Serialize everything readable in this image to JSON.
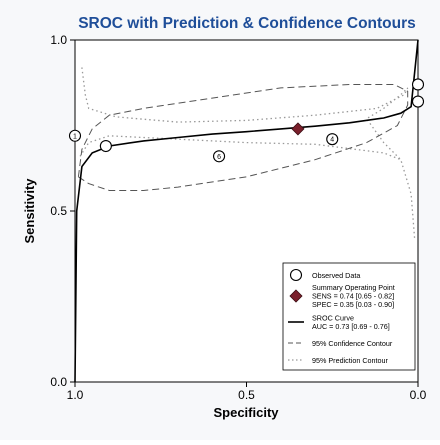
{
  "chart_data": {
    "type": "scatter",
    "title": "SROC with Prediction & Confidence Contours",
    "xlabel": "Specificity",
    "ylabel": "Sensitivity",
    "x_reversed": true,
    "xlim": [
      1.0,
      0.0
    ],
    "ylim": [
      0.0,
      1.0
    ],
    "x_ticks": [
      {
        "value": 1.0,
        "label": "1.0"
      },
      {
        "value": 0.5,
        "label": "0.5"
      },
      {
        "value": 0.0,
        "label": "0.0"
      }
    ],
    "y_ticks": [
      {
        "value": 0.0,
        "label": "0.0"
      },
      {
        "value": 0.5,
        "label": "0.5"
      },
      {
        "value": 1.0,
        "label": "1.0"
      }
    ],
    "grid": false,
    "legend_position": "bottom-right",
    "colors": {
      "title": "#1f4e99",
      "summary_point": "#7a1f2b",
      "curve": "#000000",
      "confidence": "#555555",
      "prediction": "#999999"
    },
    "observed_points": [
      {
        "spec": 1.0,
        "sens": 0.72,
        "label": "1"
      },
      {
        "spec": 0.91,
        "sens": 0.69,
        "label": ""
      },
      {
        "spec": 0.58,
        "sens": 0.66,
        "label": "6"
      },
      {
        "spec": 0.25,
        "sens": 0.71,
        "label": "4"
      },
      {
        "spec": 0.0,
        "sens": 0.87,
        "label": ""
      },
      {
        "spec": 0.0,
        "sens": 0.82,
        "label": ""
      }
    ],
    "summary_point": {
      "spec": 0.35,
      "sens": 0.74
    },
    "sroc_curve": [
      {
        "spec": 1.0,
        "sens": 0.0
      },
      {
        "spec": 0.995,
        "sens": 0.5
      },
      {
        "spec": 0.98,
        "sens": 0.63
      },
      {
        "spec": 0.95,
        "sens": 0.67
      },
      {
        "spec": 0.9,
        "sens": 0.69
      },
      {
        "spec": 0.8,
        "sens": 0.705
      },
      {
        "spec": 0.7,
        "sens": 0.715
      },
      {
        "spec": 0.6,
        "sens": 0.725
      },
      {
        "spec": 0.5,
        "sens": 0.732
      },
      {
        "spec": 0.4,
        "sens": 0.74
      },
      {
        "spec": 0.3,
        "sens": 0.748
      },
      {
        "spec": 0.2,
        "sens": 0.758
      },
      {
        "spec": 0.1,
        "sens": 0.772
      },
      {
        "spec": 0.05,
        "sens": 0.786
      },
      {
        "spec": 0.02,
        "sens": 0.805
      },
      {
        "spec": 0.0,
        "sens": 1.0
      }
    ],
    "confidence_contour": [
      {
        "spec": 0.99,
        "sens": 0.6
      },
      {
        "spec": 0.96,
        "sens": 0.58
      },
      {
        "spec": 0.9,
        "sens": 0.56
      },
      {
        "spec": 0.8,
        "sens": 0.56
      },
      {
        "spec": 0.7,
        "sens": 0.57
      },
      {
        "spec": 0.5,
        "sens": 0.6
      },
      {
        "spec": 0.3,
        "sens": 0.65
      },
      {
        "spec": 0.15,
        "sens": 0.7
      },
      {
        "spec": 0.06,
        "sens": 0.75
      },
      {
        "spec": 0.03,
        "sens": 0.81
      },
      {
        "spec": 0.03,
        "sens": 0.85
      },
      {
        "spec": 0.07,
        "sens": 0.87
      },
      {
        "spec": 0.2,
        "sens": 0.87
      },
      {
        "spec": 0.4,
        "sens": 0.86
      },
      {
        "spec": 0.6,
        "sens": 0.83
      },
      {
        "spec": 0.8,
        "sens": 0.8
      },
      {
        "spec": 0.9,
        "sens": 0.78
      },
      {
        "spec": 0.95,
        "sens": 0.74
      },
      {
        "spec": 0.98,
        "sens": 0.68
      },
      {
        "spec": 0.99,
        "sens": 0.6
      }
    ],
    "prediction_contour": [
      {
        "spec": 0.98,
        "sens": 0.92
      },
      {
        "spec": 0.97,
        "sens": 0.84
      },
      {
        "spec": 0.96,
        "sens": 0.8
      },
      {
        "spec": 0.88,
        "sens": 0.775
      },
      {
        "spec": 0.7,
        "sens": 0.76
      },
      {
        "spec": 0.5,
        "sens": 0.765
      },
      {
        "spec": 0.3,
        "sens": 0.78
      },
      {
        "spec": 0.12,
        "sens": 0.8
      },
      {
        "spec": 0.04,
        "sens": 0.84
      },
      {
        "spec": 0.03,
        "sens": 0.86
      },
      {
        "spec": 0.05,
        "sens": 0.84
      },
      {
        "spec": 0.1,
        "sens": 0.8
      },
      {
        "spec": 0.15,
        "sens": 0.77
      },
      {
        "spec": 0.1,
        "sens": 0.7
      },
      {
        "spec": 0.05,
        "sens": 0.65
      },
      {
        "spec": 0.02,
        "sens": 0.55
      },
      {
        "spec": 0.01,
        "sens": 0.42
      },
      null,
      {
        "spec": 0.985,
        "sens": 0.66
      },
      {
        "spec": 0.96,
        "sens": 0.7
      },
      {
        "spec": 0.9,
        "sens": 0.72
      },
      {
        "spec": 0.7,
        "sens": 0.71
      },
      {
        "spec": 0.5,
        "sens": 0.7
      },
      {
        "spec": 0.3,
        "sens": 0.695
      },
      {
        "spec": 0.1,
        "sens": 0.67
      },
      {
        "spec": 0.05,
        "sens": 0.65
      }
    ],
    "legend": [
      {
        "kind": "circle",
        "label": "Observed Data"
      },
      {
        "kind": "diamond",
        "label": "Summary Operating Point",
        "details": [
          "SENS = 0.74 [0.65 - 0.82]",
          "SPEC = 0.35 [0.03 - 0.90]"
        ]
      },
      {
        "kind": "solid",
        "label": "SROC Curve",
        "details": [
          "AUC = 0.73 [0.69 - 0.76]"
        ]
      },
      {
        "kind": "dashed",
        "label": "95% Confidence Contour"
      },
      {
        "kind": "dotted",
        "label": "95% Prediction Contour"
      }
    ]
  }
}
